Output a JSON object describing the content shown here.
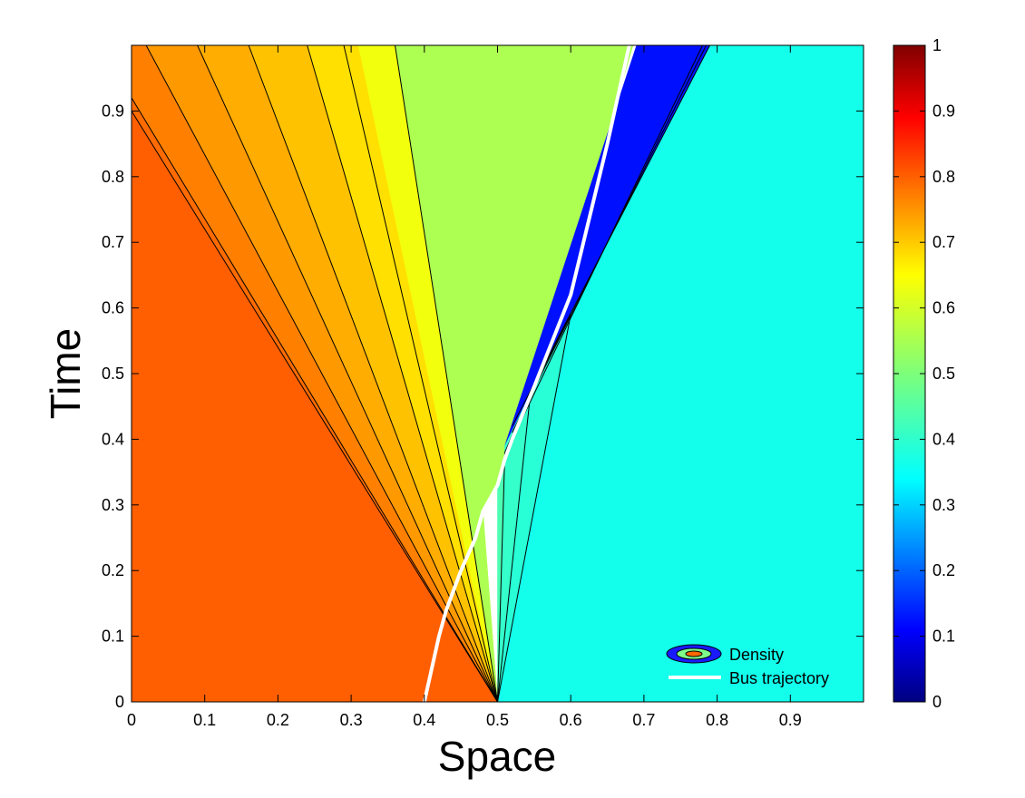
{
  "chart_data": {
    "type": "heatmap",
    "xlabel": "Space",
    "ylabel": "Time",
    "xlim": [
      0,
      1
    ],
    "ylim": [
      0,
      1
    ],
    "x_ticks": [
      "0",
      "0.1",
      "0.2",
      "0.3",
      "0.4",
      "0.5",
      "0.6",
      "0.7",
      "0.8",
      "0.9"
    ],
    "x_tick_values": [
      0,
      0.1,
      0.2,
      0.3,
      0.4,
      0.5,
      0.6,
      0.7,
      0.8,
      0.9
    ],
    "y_ticks": [
      "0",
      "0.1",
      "0.2",
      "0.3",
      "0.4",
      "0.5",
      "0.6",
      "0.7",
      "0.8",
      "0.9"
    ],
    "y_tick_values": [
      0,
      0.1,
      0.2,
      0.3,
      0.4,
      0.5,
      0.6,
      0.7,
      0.8,
      0.9
    ],
    "colorbar": {
      "range": [
        0,
        1
      ],
      "colormap": "jet",
      "ticks": [
        "0",
        "0.1",
        "0.2",
        "0.3",
        "0.4",
        "0.5",
        "0.6",
        "0.7",
        "0.8",
        "0.9",
        "1"
      ],
      "tick_values": [
        0,
        0.1,
        0.2,
        0.3,
        0.4,
        0.5,
        0.6,
        0.7,
        0.8,
        0.9,
        1
      ]
    },
    "density_regions": [
      {
        "density": 0.8,
        "color": "#ff5f00",
        "polygon": [
          [
            0,
            0
          ],
          [
            0.5,
            0
          ],
          [
            0,
            0.9
          ]
        ]
      },
      {
        "density": 0.78,
        "color": "#ff6b00",
        "polygon": [
          [
            0,
            0.9
          ],
          [
            0.5,
            0
          ],
          [
            0,
            0.92
          ]
        ]
      },
      {
        "density": 0.75,
        "color": "#ff8000",
        "polygon": [
          [
            0,
            0.92
          ],
          [
            0.5,
            0
          ],
          [
            0.02,
            1
          ],
          [
            0,
            1
          ]
        ]
      },
      {
        "density": 0.72,
        "color": "#ff9900",
        "polygon": [
          [
            0.02,
            1
          ],
          [
            0.5,
            0
          ],
          [
            0.09,
            1
          ]
        ]
      },
      {
        "density": 0.68,
        "color": "#ffad00",
        "polygon": [
          [
            0.09,
            1
          ],
          [
            0.5,
            0
          ],
          [
            0.16,
            1
          ]
        ]
      },
      {
        "density": 0.65,
        "color": "#ffc200",
        "polygon": [
          [
            0.16,
            1
          ],
          [
            0.5,
            0
          ],
          [
            0.24,
            1
          ]
        ]
      },
      {
        "density": 0.62,
        "color": "#ffe000",
        "polygon": [
          [
            0.24,
            1
          ],
          [
            0.5,
            0
          ],
          [
            0.31,
            1
          ]
        ]
      },
      {
        "density": 0.6,
        "color": "#f2ff0d",
        "polygon": [
          [
            0.31,
            1
          ],
          [
            0.5,
            0
          ],
          [
            0.36,
            1
          ]
        ]
      },
      {
        "density": 0.57,
        "color": "#d4ff2b",
        "polygon": [
          [
            0.36,
            1
          ],
          [
            0.5,
            0
          ],
          [
            0.48,
            0.29
          ],
          [
            0.5,
            0.33
          ],
          [
            0.51,
            0.37
          ],
          [
            0.52,
            0.4
          ],
          [
            0.55,
            0.48
          ],
          [
            0.68,
            1
          ],
          [
            0.36,
            1
          ]
        ]
      },
      {
        "density": 0.55,
        "color": "#adff52",
        "polygon": [
          [
            0.36,
            1
          ],
          [
            0.5,
            0
          ],
          [
            0.48,
            0.29
          ],
          [
            0.5,
            0.33
          ],
          [
            0.51,
            0.37
          ],
          [
            0.52,
            0.4
          ],
          [
            0.55,
            0.48
          ],
          [
            0.685,
            1
          ],
          [
            0.36,
            1
          ]
        ]
      },
      {
        "density": 0.12,
        "color": "#0010ff",
        "polygon": [
          [
            0.51,
            0.39
          ],
          [
            0.69,
            1
          ],
          [
            0.79,
            1
          ]
        ]
      },
      {
        "density": 0.45,
        "color": "#35ffcb",
        "polygon": [
          [
            0.5,
            0
          ],
          [
            0.545,
            0.47
          ],
          [
            0.51,
            0.39
          ]
        ]
      },
      {
        "density": 0.47,
        "color": "#4dffb2",
        "polygon": [
          [
            0.5,
            0
          ],
          [
            0.51,
            0.38
          ],
          [
            0.5,
            0.33
          ]
        ]
      },
      {
        "density": 0.4,
        "color": "#13ffec",
        "polygon": [
          [
            0.5,
            0
          ],
          [
            1,
            0
          ],
          [
            1,
            1
          ],
          [
            0.79,
            1
          ],
          [
            0.6,
            0.59
          ],
          [
            0.545,
            0.47
          ]
        ]
      },
      {
        "density": 0.42,
        "color": "#28ffd7",
        "polygon": [
          [
            0.5,
            0
          ],
          [
            0.6,
            0.59
          ],
          [
            0.545,
            0.47
          ]
        ]
      }
    ],
    "contour_lines": [
      [
        [
          0.5,
          0
        ],
        [
          0,
          0.9
        ]
      ],
      [
        [
          0.5,
          0
        ],
        [
          0,
          0.92
        ]
      ],
      [
        [
          0.5,
          0
        ],
        [
          0.02,
          1
        ]
      ],
      [
        [
          0.5,
          0
        ],
        [
          0.09,
          1
        ]
      ],
      [
        [
          0.5,
          0
        ],
        [
          0.16,
          1
        ]
      ],
      [
        [
          0.5,
          0
        ],
        [
          0.24,
          1
        ]
      ],
      [
        [
          0.5,
          0
        ],
        [
          0.29,
          1
        ]
      ],
      [
        [
          0.5,
          0
        ],
        [
          0.36,
          1
        ]
      ],
      [
        [
          0.5,
          0
        ],
        [
          0.51,
          0.38
        ]
      ],
      [
        [
          0.5,
          0
        ],
        [
          0.545,
          0.47
        ]
      ],
      [
        [
          0.5,
          0
        ],
        [
          0.6,
          0.59
        ]
      ],
      [
        [
          0.6,
          0.59
        ],
        [
          0.545,
          0.47
        ],
        [
          0.51,
          0.38
        ]
      ],
      [
        [
          0.52,
          0.4
        ],
        [
          0.78,
          1
        ]
      ],
      [
        [
          0.52,
          0.41
        ],
        [
          0.785,
          1
        ]
      ],
      [
        [
          0.52,
          0.42
        ],
        [
          0.79,
          1
        ]
      ]
    ],
    "series": [
      {
        "name": "Bus trajectory",
        "color": "#ffffff",
        "x": [
          0.4,
          0.42,
          0.43,
          0.45,
          0.47,
          0.48,
          0.5,
          0.51,
          0.52,
          0.55,
          0.6,
          0.65,
          0.68
        ],
        "y": [
          0,
          0.1,
          0.14,
          0.2,
          0.25,
          0.29,
          0.33,
          0.37,
          0.4,
          0.48,
          0.62,
          0.85,
          1
        ]
      }
    ],
    "legend": {
      "placement": "bottom-right",
      "entries": [
        {
          "label": "Density",
          "symbol": "contour"
        },
        {
          "label": "Bus trajectory",
          "symbol": "line",
          "color": "#ffffff"
        }
      ]
    }
  }
}
